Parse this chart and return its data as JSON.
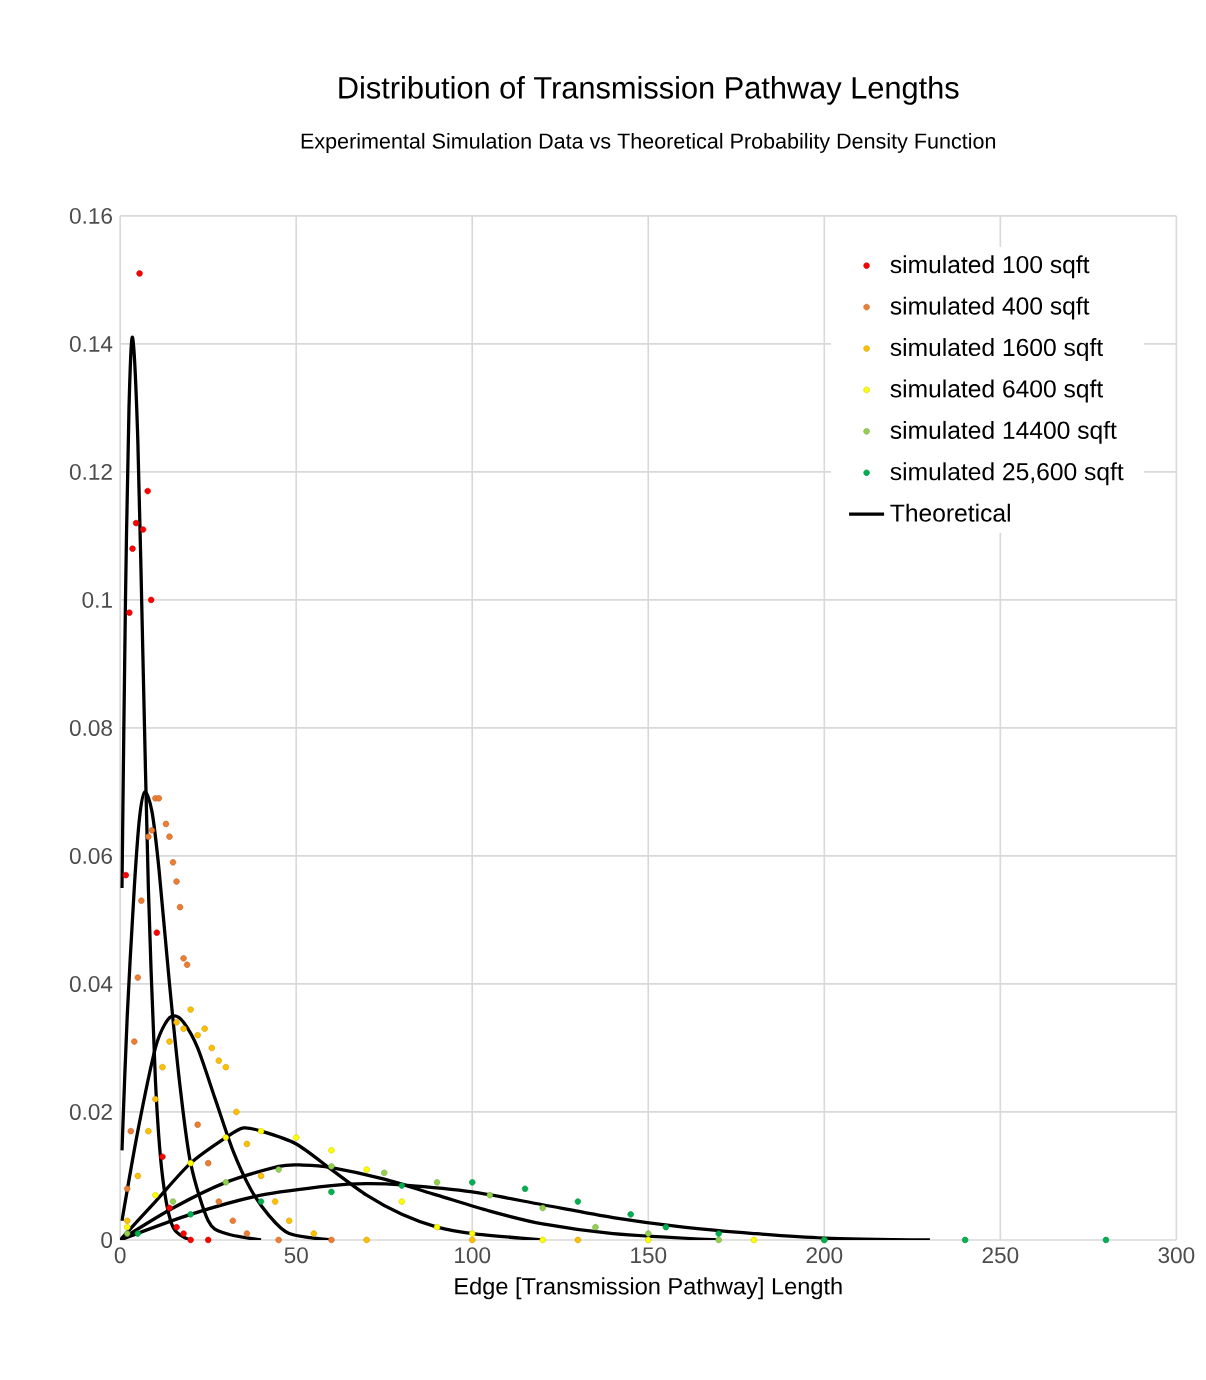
{
  "chart_data": {
    "type": "scatter",
    "title": "Distribution of Transmission  Pathway Lengths",
    "subtitle": "Experimental Simulation Data vs Theoretical Probability Density Function",
    "xlabel": "Edge [Transmission Pathway] Length",
    "xlim": [
      0,
      300
    ],
    "xticks": [
      0,
      50,
      100,
      150,
      200,
      250,
      300
    ],
    "ylim": [
      0,
      0.16
    ],
    "yticks": [
      0,
      0.02,
      0.04,
      0.06,
      0.08,
      0.1,
      0.12,
      0.14,
      0.16
    ],
    "grid": true,
    "legend": "top right",
    "series": [
      {
        "name": "simulated 100 sqft",
        "marker": "circle",
        "color": "#ff0000",
        "x": [
          1.6,
          2.6,
          3.5,
          4.5,
          5.5,
          6.5,
          7.8,
          8.8,
          10.4,
          12,
          14,
          16,
          18,
          20,
          25
        ],
        "values": [
          0.057,
          0.098,
          0.108,
          0.112,
          0.151,
          0.111,
          0.117,
          0.1,
          0.048,
          0.013,
          0.005,
          0.002,
          0.001,
          0,
          0
        ]
      },
      {
        "name": "simulated 400 sqft",
        "marker": "circle",
        "color": "#ed7d31",
        "x": [
          2,
          3,
          4,
          5,
          6,
          8,
          9,
          10,
          11,
          13,
          14,
          15,
          16,
          17,
          18,
          19,
          22,
          25,
          28,
          32,
          36,
          45,
          60
        ],
        "values": [
          0.008,
          0.017,
          0.031,
          0.041,
          0.053,
          0.063,
          0.064,
          0.069,
          0.069,
          0.065,
          0.063,
          0.059,
          0.056,
          0.052,
          0.044,
          0.043,
          0.018,
          0.012,
          0.006,
          0.003,
          0.001,
          0,
          0
        ]
      },
      {
        "name": "simulated  1600 sqft",
        "marker": "circle",
        "color": "#ffc000",
        "x": [
          2,
          5,
          8,
          10,
          12,
          14,
          16,
          18,
          20,
          22,
          24,
          26,
          28,
          30,
          33,
          36,
          40,
          44,
          48,
          55,
          70,
          100,
          130
        ],
        "values": [
          0.003,
          0.01,
          0.017,
          0.022,
          0.027,
          0.031,
          0.034,
          0.033,
          0.036,
          0.032,
          0.033,
          0.03,
          0.028,
          0.027,
          0.02,
          0.015,
          0.01,
          0.006,
          0.003,
          0.001,
          0,
          0,
          0
        ]
      },
      {
        "name": "simulated  6400 sqft",
        "marker": "circle",
        "color": "#ffff00",
        "x": [
          2,
          10,
          20,
          30,
          40,
          50,
          60,
          70,
          80,
          90,
          100,
          120,
          150,
          180
        ],
        "values": [
          0.002,
          0.007,
          0.012,
          0.016,
          0.017,
          0.016,
          0.014,
          0.011,
          0.006,
          0.002,
          0.001,
          0,
          0,
          0
        ]
      },
      {
        "name": "simulated  14400 sqft",
        "marker": "circle",
        "color": "#92d050",
        "x": [
          2,
          15,
          30,
          45,
          60,
          75,
          90,
          105,
          120,
          135,
          150,
          170,
          200
        ],
        "values": [
          0.001,
          0.006,
          0.009,
          0.011,
          0.0115,
          0.0105,
          0.009,
          0.007,
          0.005,
          0.002,
          0.001,
          0,
          0
        ]
      },
      {
        "name": "simulated  25,600 sqft",
        "marker": "circle",
        "color": "#00b050",
        "x": [
          5,
          20,
          40,
          60,
          80,
          100,
          115,
          130,
          145,
          155,
          170,
          200,
          240,
          280
        ],
        "values": [
          0.001,
          0.004,
          0.006,
          0.0075,
          0.0085,
          0.009,
          0.008,
          0.006,
          0.004,
          0.002,
          0.001,
          0,
          0,
          0
        ]
      },
      {
        "name": "Theoretical",
        "type": "line",
        "color": "#000000",
        "x": [
          0.5,
          1.5,
          2.5,
          3.5,
          5,
          6.5,
          8,
          10,
          12,
          15,
          20
        ],
        "values": [
          0.055,
          0.1,
          0.13,
          0.141,
          0.125,
          0.09,
          0.055,
          0.025,
          0.01,
          0.002,
          0
        ]
      },
      {
        "type": "line",
        "color": "#000000",
        "x": [
          0.5,
          2,
          4,
          5.5,
          7,
          9,
          11,
          14,
          17,
          20,
          25,
          30,
          40
        ],
        "values": [
          0.014,
          0.035,
          0.055,
          0.066,
          0.07,
          0.067,
          0.058,
          0.04,
          0.024,
          0.012,
          0.003,
          0.001,
          0
        ]
      },
      {
        "type": "line",
        "color": "#000000",
        "x": [
          0.5,
          5,
          10,
          13,
          15.3,
          18,
          22,
          27,
          32,
          37,
          42,
          48,
          60
        ],
        "values": [
          0.003,
          0.017,
          0.03,
          0.034,
          0.035,
          0.034,
          0.03,
          0.022,
          0.014,
          0.008,
          0.004,
          0.001,
          0
        ]
      },
      {
        "type": "line",
        "color": "#000000",
        "x": [
          0,
          10,
          20,
          30,
          35,
          40,
          50,
          60,
          70,
          80,
          90,
          100,
          120
        ],
        "values": [
          0,
          0.006,
          0.012,
          0.016,
          0.0175,
          0.017,
          0.015,
          0.011,
          0.007,
          0.004,
          0.002,
          0.001,
          0
        ]
      },
      {
        "type": "line",
        "color": "#000000",
        "x": [
          0,
          15,
          30,
          45,
          52,
          60,
          75,
          90,
          105,
          120,
          140,
          170
        ],
        "values": [
          0,
          0.005,
          0.009,
          0.0115,
          0.0117,
          0.0113,
          0.0095,
          0.007,
          0.0045,
          0.0025,
          0.001,
          0
        ]
      },
      {
        "type": "line",
        "color": "#000000",
        "x": [
          0,
          20,
          40,
          60,
          70,
          80,
          100,
          120,
          140,
          160,
          180,
          200,
          230
        ],
        "values": [
          0,
          0.004,
          0.007,
          0.0085,
          0.0088,
          0.0086,
          0.0075,
          0.0055,
          0.0035,
          0.002,
          0.001,
          0.0003,
          0
        ]
      }
    ]
  }
}
